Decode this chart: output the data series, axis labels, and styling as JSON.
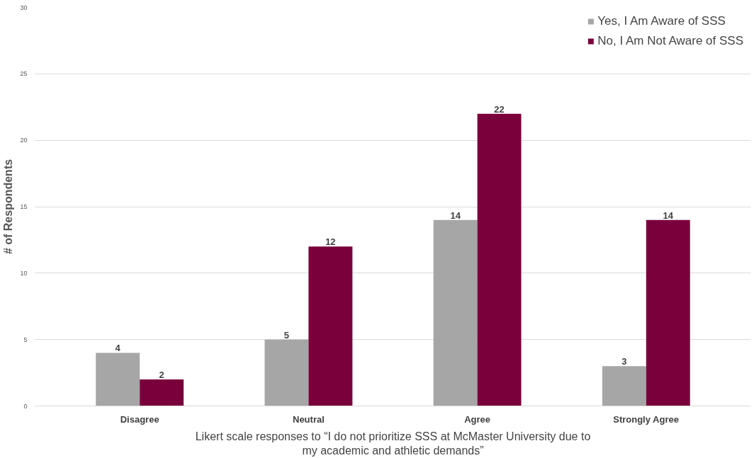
{
  "chart_data": {
    "type": "bar",
    "categories": [
      "Disagree",
      "Neutral",
      "Agree",
      "Strongly Agree"
    ],
    "series": [
      {
        "name": "Yes, I Am Aware of SSS",
        "color": "#a6a6a6",
        "values": [
          4,
          5,
          14,
          3
        ]
      },
      {
        "name": "No, I Am Not Aware of SSS",
        "color": "#7a003c",
        "values": [
          2,
          12,
          22,
          14
        ]
      }
    ],
    "xlabel": "Likert scale responses to “I do not prioritize SSS at McMaster University due to\nmy academic and athletic demands”",
    "ylabel": "# of Respondents",
    "ylim": [
      0,
      30
    ],
    "yticks": [
      0,
      5,
      10,
      15,
      20,
      25,
      30
    ],
    "grid": "y",
    "legend": "top right",
    "data_labels": true
  }
}
